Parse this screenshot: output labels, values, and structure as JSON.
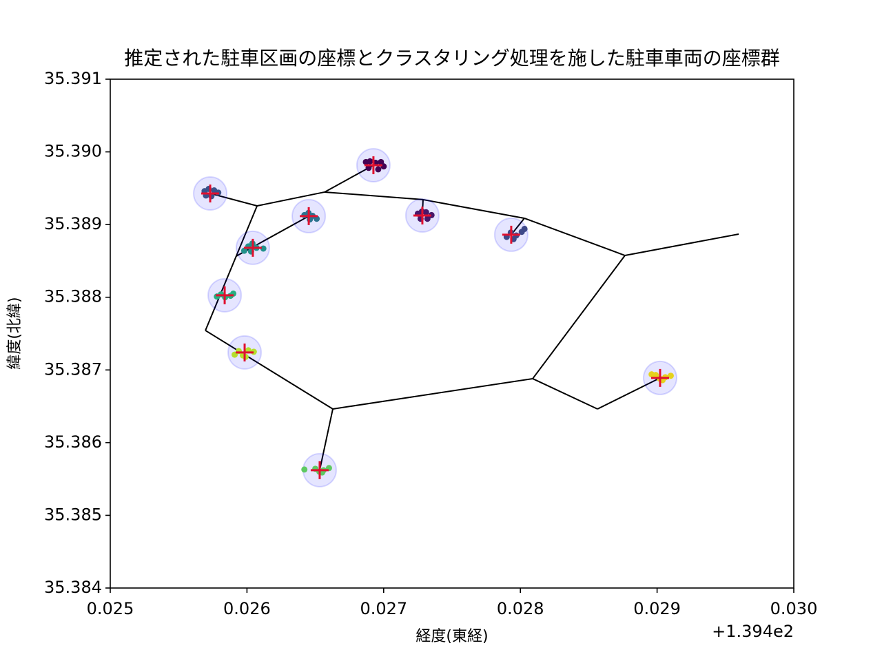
{
  "chart_data": {
    "type": "scatter",
    "title": "推定された駐車区画の座標とクラスタリング処理を施した駐車車両の座標群",
    "x_label": "経度(東経)",
    "y_label": "緯度(北緯)",
    "x_offset_label": "+1.394e2",
    "xlim": [
      0.025,
      0.03
    ],
    "ylim": [
      35.384,
      35.391
    ],
    "xticks": [
      0.025,
      0.026,
      0.027,
      0.028,
      0.029,
      {
        "value": 0.03,
        "label": "0.030"
      }
    ],
    "yticks": [
      35.384,
      35.385,
      35.386,
      35.387,
      35.388,
      35.389,
      {
        "value": 35.39,
        "label": "35.390"
      },
      35.391
    ],
    "grid": false,
    "segment_color": "#000000",
    "segments": [
      {
        "x": [
          0.025731,
          0.026074
        ],
        "values": [
          35.389428,
          35.389257
        ]
      },
      {
        "x": [
          0.026074,
          0.025696
        ],
        "values": [
          35.389257,
          35.387543
        ]
      },
      {
        "x": [
          0.026074,
          0.026568
        ],
        "values": [
          35.389257,
          35.389447
        ]
      },
      {
        "x": [
          0.026568,
          0.026925
        ],
        "values": [
          35.389447,
          35.389816
        ]
      },
      {
        "x": [
          0.026568,
          0.027288
        ],
        "values": [
          35.389447,
          35.389343
        ]
      },
      {
        "x": [
          0.027288,
          0.028029
        ],
        "values": [
          35.389343,
          35.389087
        ]
      },
      {
        "x": [
          0.027288,
          0.027283
        ],
        "values": [
          35.389343,
          35.389125
        ]
      },
      {
        "x": [
          0.028029,
          0.027933
        ],
        "values": [
          35.389087,
          35.38886
        ]
      },
      {
        "x": [
          0.028029,
          0.028765
        ],
        "values": [
          35.389087,
          35.388575
        ]
      },
      {
        "x": [
          0.028765,
          0.029597
        ],
        "values": [
          35.388575,
          35.388869
        ]
      },
      {
        "x": [
          0.028765,
          0.02809
        ],
        "values": [
          35.388575,
          35.38688
        ]
      },
      {
        "x": [
          0.02809,
          0.028564
        ],
        "values": [
          35.38688,
          35.386463
        ]
      },
      {
        "x": [
          0.028564,
          0.029022
        ],
        "values": [
          35.386463,
          35.38689
        ]
      },
      {
        "x": [
          0.02809,
          0.026628
        ],
        "values": [
          35.38688,
          35.386463
        ]
      },
      {
        "x": [
          0.026628,
          0.026532
        ],
        "values": [
          35.386463,
          35.385621
        ]
      },
      {
        "x": [
          0.026628,
          0.025696
        ],
        "values": [
          35.386463,
          35.387543
        ]
      },
      {
        "x": [
          0.025922,
          0.026452
        ],
        "values": [
          35.388566,
          35.389116
        ]
      }
    ],
    "series": [
      {
        "color": "#3b528b",
        "x": [
          0.02569,
          0.02572,
          0.02576,
          0.02579,
          0.02574,
          0.0257
        ],
        "values": [
          35.38946,
          35.38949,
          35.38947,
          35.38944,
          35.38939,
          35.3894
        ]
      },
      {
        "color": "#440154",
        "x": [
          0.02687,
          0.0269,
          0.02694,
          0.02698,
          0.027,
          0.02689,
          0.02696
        ],
        "values": [
          35.38986,
          35.38987,
          35.38985,
          35.38986,
          35.3898,
          35.38978,
          35.38976
        ]
      },
      {
        "color": "#2c728e",
        "x": [
          0.02642,
          0.02645,
          0.02648,
          0.02651,
          0.02646
        ],
        "values": [
          35.38913,
          35.38916,
          35.38912,
          35.38908,
          35.38907
        ]
      },
      {
        "color": "#48186a",
        "x": [
          0.02725,
          0.02728,
          0.02731,
          0.02735,
          0.02727,
          0.02732
        ],
        "values": [
          35.38915,
          35.38918,
          35.38917,
          35.38913,
          35.38908,
          35.38908
        ]
      },
      {
        "color": "#21918c",
        "x": [
          0.02598,
          0.02601,
          0.02604,
          0.02607,
          0.02612,
          0.02603
        ],
        "values": [
          35.38864,
          35.3887,
          35.38874,
          35.38868,
          35.38867,
          35.38863
        ]
      },
      {
        "color": "#3e4989",
        "x": [
          0.0279,
          0.02793,
          0.02797,
          0.02801,
          0.02803,
          0.02795
        ],
        "values": [
          35.38883,
          35.38889,
          35.38885,
          35.3889,
          35.38894,
          35.3888
        ]
      },
      {
        "color": "#28ae80",
        "x": [
          0.02578,
          0.02581,
          0.02584,
          0.02588,
          0.0259
        ],
        "values": [
          35.38801,
          35.38804,
          35.388,
          35.38802,
          35.38805
        ]
      },
      {
        "color": "#b5de2b",
        "x": [
          0.02591,
          0.02594,
          0.02597,
          0.02601,
          0.02605,
          0.02599
        ],
        "values": [
          35.38721,
          35.38726,
          35.3872,
          35.38727,
          35.38725,
          35.38718
        ]
      },
      {
        "color": "#e5d21d",
        "x": [
          0.02896,
          0.02899,
          0.02902,
          0.02906,
          0.0291,
          0.02904
        ],
        "values": [
          35.38694,
          35.38693,
          35.38688,
          35.3869,
          35.38692,
          35.38686
        ]
      },
      {
        "color": "#5ec962",
        "x": [
          0.02642,
          0.0265,
          0.02653,
          0.02656,
          0.0266,
          0.02655
        ],
        "values": [
          35.38563,
          35.38564,
          35.3856,
          35.38562,
          35.38565,
          35.38559
        ]
      }
    ],
    "centers": {
      "color": "#e0102f",
      "circle_color": "#0000ff",
      "x": [
        0.025731,
        0.026925,
        0.026452,
        0.027283,
        0.026043,
        0.027933,
        0.025837,
        0.025983,
        0.029022,
        0.026532
      ],
      "values": [
        35.389428,
        35.389816,
        35.389116,
        35.389125,
        35.38868,
        35.38886,
        35.388027,
        35.387241,
        35.38689,
        35.385621
      ]
    }
  }
}
